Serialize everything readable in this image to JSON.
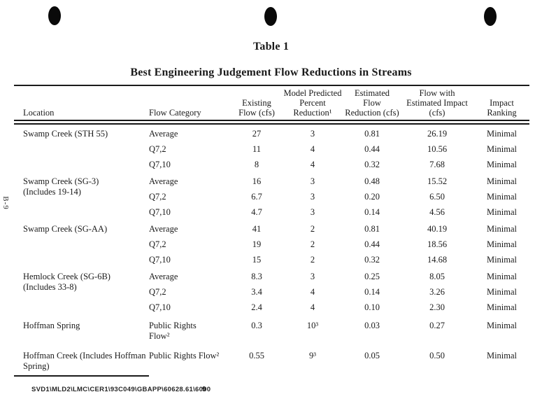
{
  "page": {
    "table_label": "Table 1",
    "title": "Best Engineering Judgement Flow Reductions in Streams",
    "side_label": "B-9"
  },
  "table": {
    "columns": {
      "location": "Location",
      "flow_category": "Flow Category",
      "existing_flow": "Existing\nFlow (cfs)",
      "percent_reduction": "Model Predicted\nPercent\nReduction¹",
      "flow_reduction": "Estimated\nFlow\nReduction (cfs)",
      "flow_with_impact": "Flow with\nEstimated Impact\n(cfs)",
      "impact_ranking": "Impact\nRanking"
    },
    "rows": [
      {
        "new_group": true,
        "location_lines": [
          "Swamp Creek (STH 55)"
        ],
        "flow_category_lines": [
          "Average"
        ],
        "existing_flow": "27",
        "percent_reduction": "3",
        "flow_reduction": "0.81",
        "flow_with_impact": "26.19",
        "impact_ranking": "Minimal"
      },
      {
        "flow_category_lines": [
          "Q7,2"
        ],
        "existing_flow": "11",
        "percent_reduction": "4",
        "flow_reduction": "0.44",
        "flow_with_impact": "10.56",
        "impact_ranking": "Minimal"
      },
      {
        "flow_category_lines": [
          "Q7,10"
        ],
        "existing_flow": "8",
        "percent_reduction": "4",
        "flow_reduction": "0.32",
        "flow_with_impact": "7.68",
        "impact_ranking": "Minimal"
      },
      {
        "new_group": true,
        "location_lines": [
          "Swamp Creek (SG-3)",
          "(Includes 19-14)"
        ],
        "flow_category_lines": [
          "Average"
        ],
        "existing_flow": "16",
        "percent_reduction": "3",
        "flow_reduction": "0.48",
        "flow_with_impact": "15.52",
        "impact_ranking": "Minimal"
      },
      {
        "flow_category_lines": [
          "Q7,2"
        ],
        "existing_flow": "6.7",
        "percent_reduction": "3",
        "flow_reduction": "0.20",
        "flow_with_impact": "6.50",
        "impact_ranking": "Minimal"
      },
      {
        "flow_category_lines": [
          "Q7,10"
        ],
        "existing_flow": "4.7",
        "percent_reduction": "3",
        "flow_reduction": "0.14",
        "flow_with_impact": "4.56",
        "impact_ranking": "Minimal"
      },
      {
        "new_group": true,
        "location_lines": [
          "Swamp Creek (SG-AA)"
        ],
        "flow_category_lines": [
          "Average"
        ],
        "existing_flow": "41",
        "percent_reduction": "2",
        "flow_reduction": "0.81",
        "flow_with_impact": "40.19",
        "impact_ranking": "Minimal"
      },
      {
        "flow_category_lines": [
          "Q7,2"
        ],
        "existing_flow": "19",
        "percent_reduction": "2",
        "flow_reduction": "0.44",
        "flow_with_impact": "18.56",
        "impact_ranking": "Minimal"
      },
      {
        "flow_category_lines": [
          "Q7,10"
        ],
        "existing_flow": "15",
        "percent_reduction": "2",
        "flow_reduction": "0.32",
        "flow_with_impact": "14.68",
        "impact_ranking": "Minimal"
      },
      {
        "new_group": true,
        "location_lines": [
          "Hemlock Creek (SG-6B)",
          "(Includes 33-8)"
        ],
        "flow_category_lines": [
          "Average"
        ],
        "existing_flow": "8.3",
        "percent_reduction": "3",
        "flow_reduction": "0.25",
        "flow_with_impact": "8.05",
        "impact_ranking": "Minimal"
      },
      {
        "flow_category_lines": [
          "Q7,2"
        ],
        "existing_flow": "3.4",
        "percent_reduction": "4",
        "flow_reduction": "0.14",
        "flow_with_impact": "3.26",
        "impact_ranking": "Minimal"
      },
      {
        "flow_category_lines": [
          "Q7,10"
        ],
        "existing_flow": "2.4",
        "percent_reduction": "4",
        "flow_reduction": "0.10",
        "flow_with_impact": "2.30",
        "impact_ranking": "Minimal"
      },
      {
        "new_group": true,
        "tall": 1,
        "location_lines": [
          "Hoffman Spring"
        ],
        "flow_category_lines": [
          "Public Rights",
          "Flow²"
        ],
        "existing_flow": "0.3",
        "percent_reduction": "10³",
        "flow_reduction": "0.03",
        "flow_with_impact": "0.27",
        "impact_ranking": "Minimal"
      },
      {
        "new_group": true,
        "tall": 2,
        "location_lines": [
          "Hoffman Creek (Includes Hoffman",
          "Spring)"
        ],
        "flow_category_lines": [
          "Public Rights Flow²"
        ],
        "existing_flow": "0.55",
        "percent_reduction": "9³",
        "flow_reduction": "0.05",
        "flow_with_impact": "0.50",
        "impact_ranking": "Minimal"
      }
    ]
  },
  "footer": {
    "document_code": "SVD1\\MLD2\\LMC\\CER1\\93C049\\GBAPP\\60628.61\\6000",
    "page_number": "9"
  }
}
